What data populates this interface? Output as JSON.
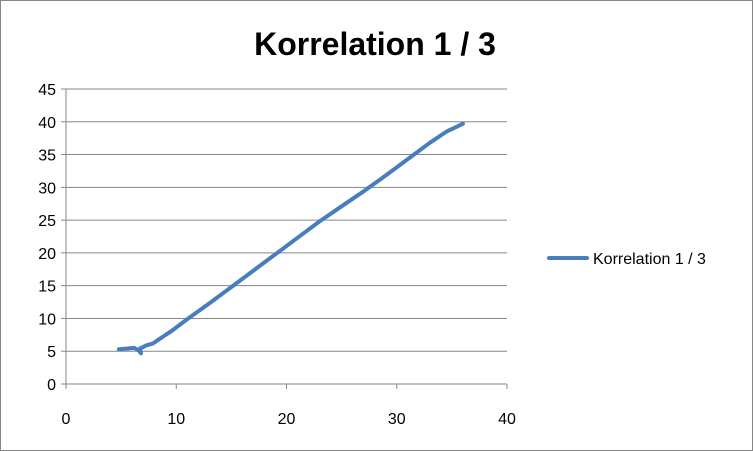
{
  "chart_data": {
    "type": "line",
    "title": "Korrelation 1 / 3",
    "xlabel": "",
    "ylabel": "",
    "xlim": [
      0,
      40
    ],
    "ylim": [
      0,
      45
    ],
    "x_ticks": [
      0,
      10,
      20,
      30,
      40
    ],
    "x_tick_labels": [
      "0",
      "10",
      "20",
      "30",
      "40"
    ],
    "y_ticks": [
      0,
      5,
      10,
      15,
      20,
      25,
      30,
      35,
      40,
      45
    ],
    "y_tick_labels": [
      "0",
      "5",
      "10",
      "15",
      "20",
      "25",
      "30",
      "35",
      "40",
      "45"
    ],
    "grid": "horizontal",
    "legend_position": "right",
    "series": [
      {
        "name": "Korrelation 1 / 3",
        "color": "#4a7ebb",
        "points": [
          [
            4.8,
            5.3
          ],
          [
            5.5,
            5.4
          ],
          [
            6.2,
            5.5
          ],
          [
            6.6,
            5.1
          ],
          [
            6.8,
            4.7
          ],
          [
            6.7,
            5.4
          ],
          [
            7.3,
            5.9
          ],
          [
            7.9,
            6.2
          ],
          [
            8.5,
            6.9
          ],
          [
            9.5,
            8.0
          ],
          [
            11.0,
            9.9
          ],
          [
            13.0,
            12.3
          ],
          [
            15.0,
            14.8
          ],
          [
            17.0,
            17.3
          ],
          [
            19.0,
            19.8
          ],
          [
            21.0,
            22.3
          ],
          [
            23.0,
            24.8
          ],
          [
            25.0,
            27.1
          ],
          [
            27.0,
            29.4
          ],
          [
            29.0,
            31.8
          ],
          [
            31.0,
            34.3
          ],
          [
            33.0,
            36.8
          ],
          [
            34.5,
            38.5
          ],
          [
            35.5,
            39.3
          ],
          [
            36.0,
            39.7
          ]
        ]
      }
    ]
  }
}
